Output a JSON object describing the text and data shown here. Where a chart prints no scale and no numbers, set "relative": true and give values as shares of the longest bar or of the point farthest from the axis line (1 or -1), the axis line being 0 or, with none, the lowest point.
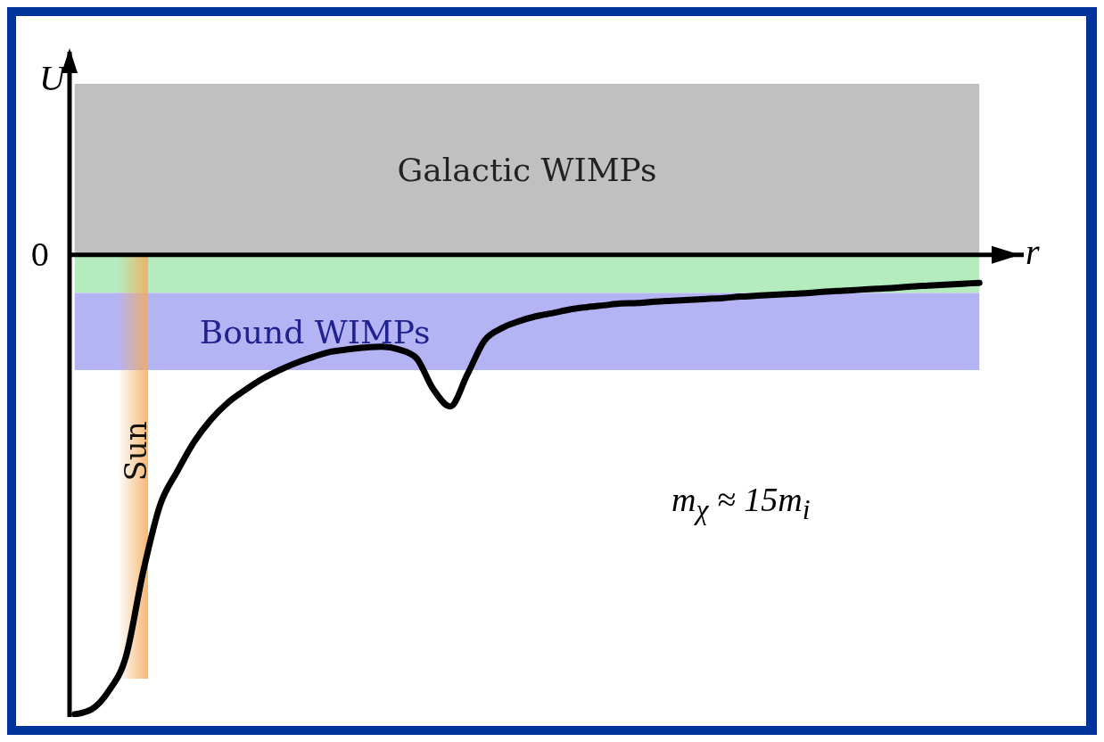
{
  "chart_data": {
    "type": "line",
    "relative": true,
    "xlabel": "r",
    "ylabel": "U",
    "marker": "none",
    "categories": [
      null,
      null,
      null,
      null,
      null,
      null,
      null,
      null,
      null,
      null,
      null,
      null,
      null,
      null,
      null,
      null,
      null,
      null,
      null,
      null,
      null,
      null,
      null,
      null,
      null,
      null,
      null,
      null,
      null,
      null,
      null,
      null,
      null,
      null,
      null,
      null,
      null,
      null,
      null,
      null,
      null,
      null,
      null,
      null,
      null,
      null,
      null,
      null,
      null,
      null,
      null,
      null,
      null,
      null
    ],
    "series": [
      {
        "color": "#000000",
        "values": [
          -1,
          -0.989,
          -0.949,
          -0.875,
          -0.692,
          -0.545,
          -0.472,
          -0.407,
          -0.358,
          -0.321,
          -0.294,
          -0.27,
          -0.251,
          -0.235,
          -0.222,
          -0.211,
          -0.206,
          -0.202,
          -0.2,
          -0.206,
          -0.224,
          -0.292,
          -0.33,
          -0.261,
          -0.187,
          -0.16,
          -0.145,
          -0.134,
          -0.127,
          -0.119,
          -0.114,
          -0.11,
          -0.106,
          -0.105,
          -0.102,
          -0.1,
          -0.098,
          -0.096,
          -0.094,
          -0.091,
          -0.089,
          -0.087,
          -0.085,
          -0.083,
          -0.08,
          -0.078,
          -0.076,
          -0.074,
          -0.072,
          -0.069,
          -0.067,
          -0.065,
          -0.063,
          -0.061
        ]
      }
    ],
    "bands": [
      {
        "axis": "y",
        "from": 0,
        "to": 0.372,
        "label": "Galactic WIMPs",
        "color": "#c0c0c0"
      },
      {
        "axis": "y",
        "from": -0.083,
        "to": 0,
        "label": null,
        "color": "#b4ecbe"
      },
      {
        "axis": "y",
        "from": -0.251,
        "to": -0.083,
        "label": "Bound WIMPs",
        "color": "#b4b4f4"
      }
    ],
    "annotations": [
      "0",
      "Sun",
      "m$_{χ}$ ≈ 15m$_{i}$"
    ]
  }
}
